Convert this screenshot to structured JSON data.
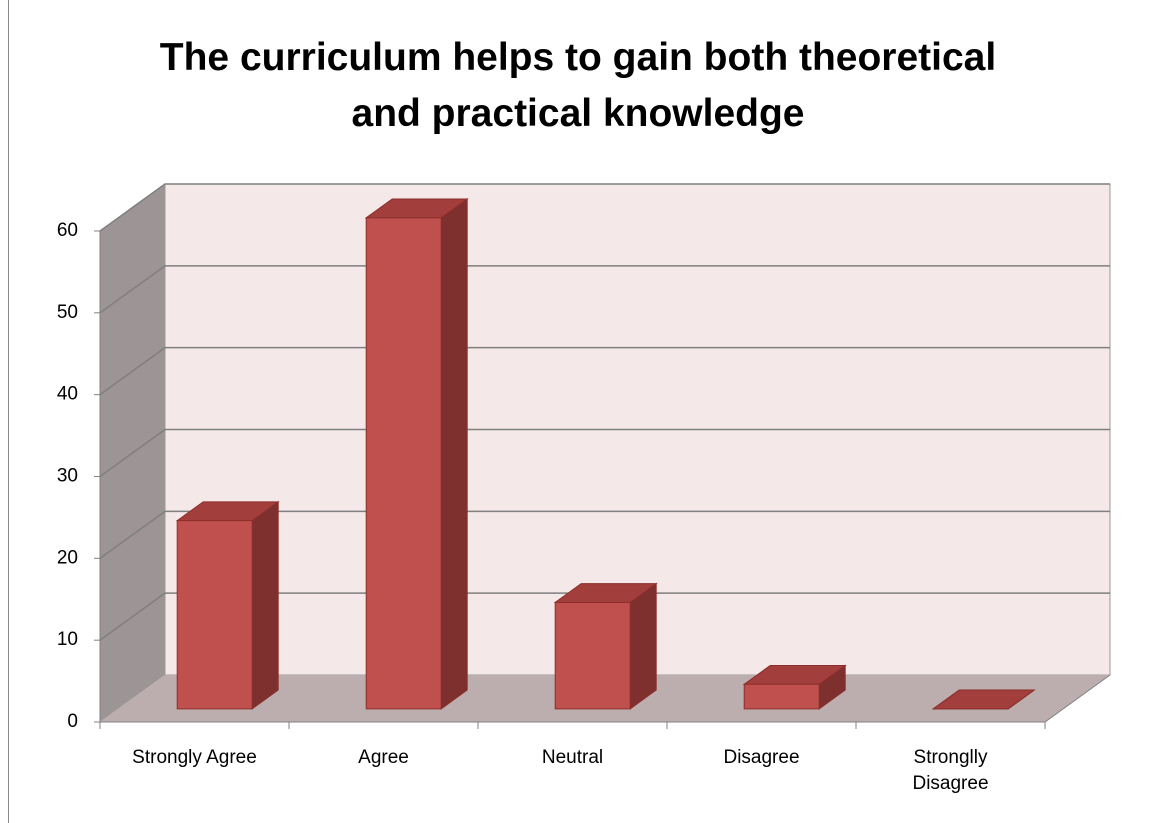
{
  "chart_data": {
    "type": "bar",
    "title": "The curriculum helps to gain both theoretical and practical knowledge",
    "categories": [
      "Strongly Agree",
      "Agree",
      "Neutral",
      "Disagree",
      "Stronglly Disagree"
    ],
    "values": [
      23,
      60,
      13,
      3,
      0
    ],
    "color": "#c0504d",
    "ylim": [
      0,
      60
    ],
    "yticks": [
      0,
      10,
      20,
      30,
      40,
      50,
      60
    ],
    "grid": true
  }
}
